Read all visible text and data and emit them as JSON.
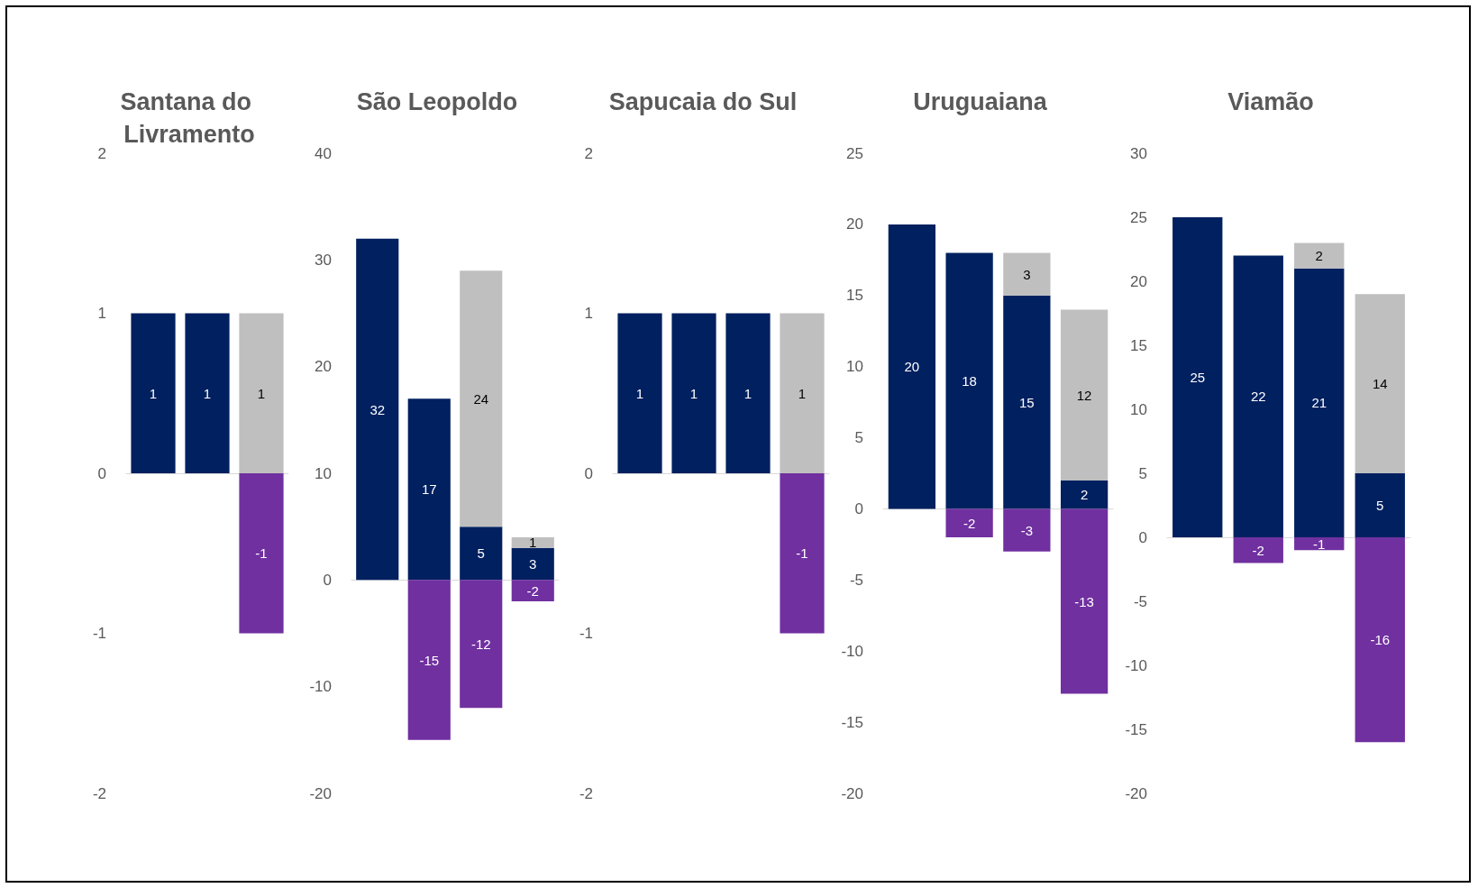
{
  "chart_data": [
    {
      "type": "bar",
      "title": "Santana do Livramento",
      "categories": [
        null,
        null,
        null
      ],
      "stacked": true,
      "data_labels": true,
      "tick_labels": "y",
      "ylim": [
        -2,
        2
      ],
      "yticks": [
        -2,
        -1,
        0,
        1,
        2
      ],
      "series": [
        {
          "color": "#002060",
          "values": [
            1,
            1,
            null
          ]
        },
        {
          "color": "#bfbfbf",
          "values": [
            null,
            null,
            1
          ]
        },
        {
          "color": "#7030a0",
          "values": [
            null,
            null,
            -1
          ]
        }
      ]
    },
    {
      "type": "bar",
      "title": "São Leopoldo",
      "categories": [
        null,
        null,
        null,
        null
      ],
      "stacked": true,
      "data_labels": true,
      "tick_labels": "y",
      "ylim": [
        -20,
        40
      ],
      "yticks": [
        -20,
        -10,
        0,
        10,
        20,
        30,
        40
      ],
      "series": [
        {
          "color": "#002060",
          "values": [
            32,
            17,
            5,
            3
          ]
        },
        {
          "color": "#bfbfbf",
          "values": [
            null,
            null,
            24,
            1
          ]
        },
        {
          "color": "#7030a0",
          "values": [
            null,
            -15,
            -12,
            -2
          ]
        }
      ]
    },
    {
      "type": "bar",
      "title": "Sapucaia do Sul",
      "categories": [
        null,
        null,
        null,
        null
      ],
      "stacked": true,
      "data_labels": true,
      "tick_labels": "y",
      "ylim": [
        -2,
        2
      ],
      "yticks": [
        -2,
        -1,
        0,
        1,
        2
      ],
      "series": [
        {
          "color": "#002060",
          "values": [
            1,
            1,
            1,
            null
          ]
        },
        {
          "color": "#bfbfbf",
          "values": [
            null,
            null,
            null,
            1
          ]
        },
        {
          "color": "#7030a0",
          "values": [
            null,
            null,
            null,
            -1
          ]
        }
      ]
    },
    {
      "type": "bar",
      "title": "Uruguaiana",
      "categories": [
        null,
        null,
        null,
        null
      ],
      "stacked": true,
      "data_labels": true,
      "tick_labels": "y",
      "ylim": [
        -20,
        25
      ],
      "yticks": [
        -20,
        -15,
        -10,
        -5,
        0,
        5,
        10,
        15,
        20,
        25
      ],
      "series": [
        {
          "color": "#002060",
          "values": [
            20,
            18,
            15,
            2
          ]
        },
        {
          "color": "#bfbfbf",
          "values": [
            null,
            null,
            3,
            12
          ]
        },
        {
          "color": "#7030a0",
          "values": [
            null,
            -2,
            -3,
            -13
          ]
        }
      ]
    },
    {
      "type": "bar",
      "title": "Viamão",
      "categories": [
        null,
        null,
        null,
        null
      ],
      "stacked": true,
      "data_labels": true,
      "tick_labels": "y",
      "ylim": [
        -20,
        30
      ],
      "yticks": [
        -20,
        -15,
        -10,
        -5,
        0,
        5,
        10,
        15,
        20,
        25,
        30
      ],
      "series": [
        {
          "color": "#002060",
          "values": [
            25,
            22,
            21,
            5
          ]
        },
        {
          "color": "#bfbfbf",
          "values": [
            null,
            null,
            2,
            14
          ]
        },
        {
          "color": "#7030a0",
          "values": [
            null,
            -2,
            -1,
            -16
          ]
        }
      ]
    }
  ]
}
